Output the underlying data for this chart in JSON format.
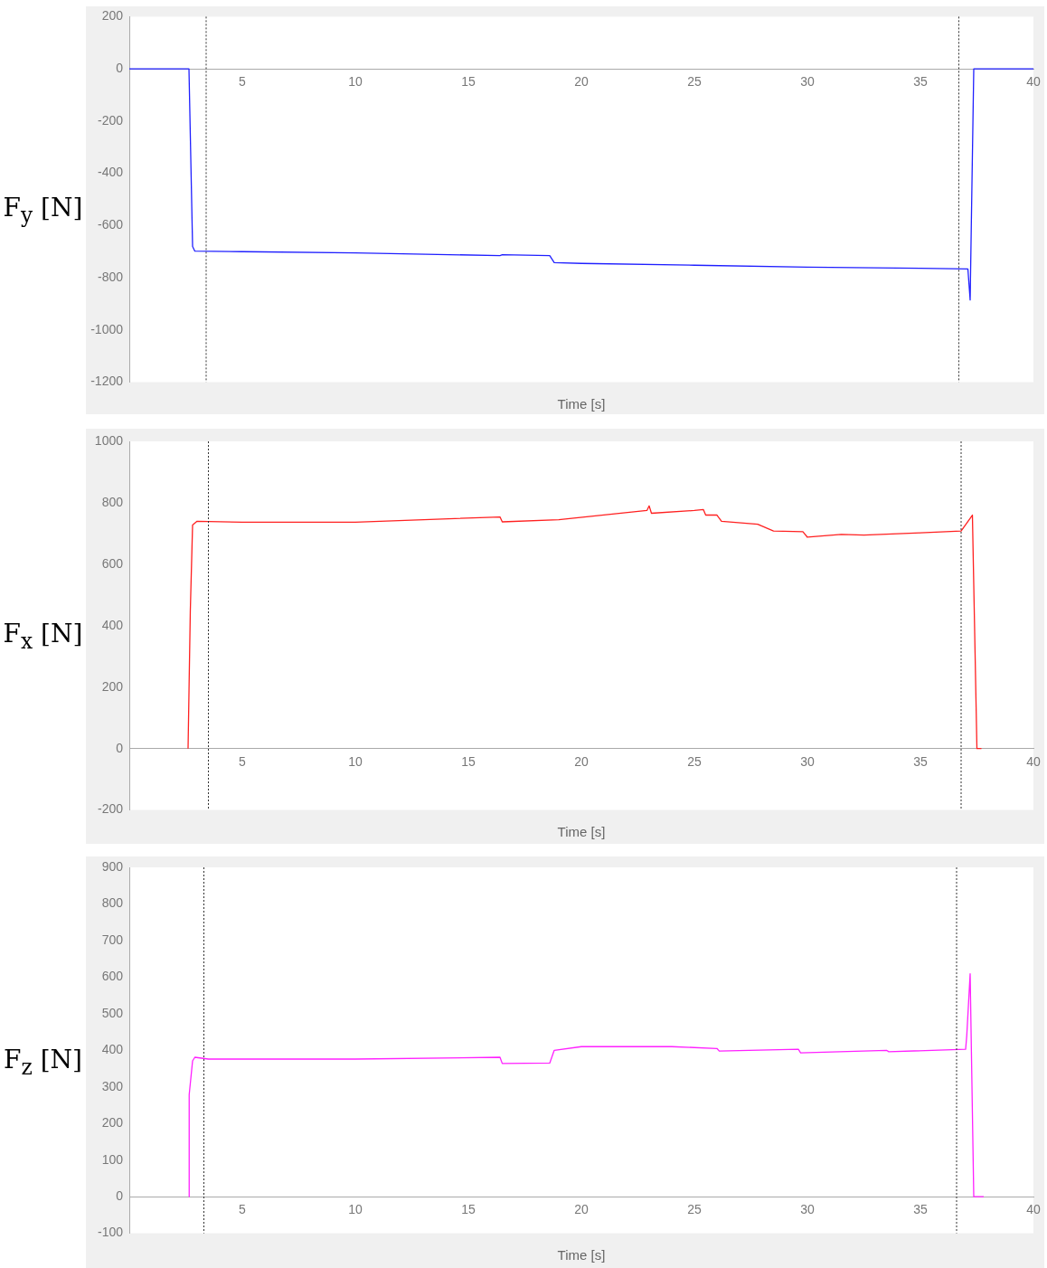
{
  "chart_data": [
    {
      "type": "line",
      "ylabel": "F$_{y}$ [N]",
      "xlabel": "Time [s]",
      "color": "#1f1fff",
      "xlim": [
        0,
        40
      ],
      "xticks": [
        5,
        10,
        15,
        20,
        25,
        30,
        35,
        40
      ],
      "ylim": [
        -1200,
        200
      ],
      "yticks": [
        200,
        0,
        -200,
        -400,
        -600,
        -800,
        -1000,
        -1200
      ],
      "x": [
        0,
        2.64,
        2.8,
        2.9,
        5,
        10,
        16.4,
        16.5,
        18.6,
        18.8,
        20,
        25,
        30,
        33,
        35,
        37.1,
        37.2,
        37.36,
        38,
        40
      ],
      "values": [
        0,
        0,
        -680,
        -698,
        -700,
        -705,
        -715,
        -712,
        -715,
        -742,
        -745,
        -752,
        -759,
        -762,
        -764,
        -766,
        -885,
        0,
        0,
        0
      ],
      "ref_lines": [
        {
          "axis": "x",
          "value": 3.4,
          "line_style": "dotted",
          "color": "#333333"
        },
        {
          "axis": "x",
          "value": 36.7,
          "line_style": "dotted",
          "color": "#333333"
        }
      ]
    },
    {
      "type": "line",
      "ylabel": "F$_{x}$ [N]",
      "xlabel": "Time [s]",
      "color": "#ff2020",
      "xlim": [
        0,
        40
      ],
      "xticks": [
        5,
        10,
        15,
        20,
        25,
        30,
        35,
        40
      ],
      "ylim": [
        -200,
        1000
      ],
      "yticks": [
        1000,
        800,
        600,
        400,
        200,
        0,
        -200
      ],
      "x": [
        2.6,
        2.7,
        2.8,
        3.0,
        5,
        10,
        16.4,
        16.5,
        19,
        22.9,
        23.0,
        23.1,
        25,
        25.4,
        25.5,
        26.0,
        26.2,
        27.8,
        28.5,
        29.8,
        30.0,
        31.5,
        32.5,
        35,
        36.8,
        37.3,
        37.5,
        37.7
      ],
      "values": [
        0,
        450,
        728,
        740,
        737,
        737,
        754,
        738,
        745,
        775,
        790,
        766,
        775,
        778,
        760,
        760,
        740,
        730,
        708,
        706,
        688,
        697,
        695,
        702,
        708,
        760,
        0,
        0
      ],
      "ref_lines": [
        {
          "axis": "x",
          "value": 3.5,
          "line_style": "dotted",
          "color": "#333333"
        },
        {
          "axis": "x",
          "value": 36.8,
          "line_style": "dotted",
          "color": "#333333"
        }
      ]
    },
    {
      "type": "line",
      "ylabel": "F$_{z}$ [N]",
      "xlabel": "Time [s]",
      "color": "#ff20ff",
      "xlim": [
        0,
        40
      ],
      "xticks": [
        5,
        10,
        15,
        20,
        25,
        30,
        35,
        40
      ],
      "ylim": [
        -100,
        900
      ],
      "yticks": [
        900,
        800,
        700,
        600,
        500,
        400,
        300,
        200,
        100,
        0,
        -100
      ],
      "x": [
        2.64,
        2.65,
        2.8,
        2.9,
        3.5,
        10,
        16.4,
        16.5,
        18.6,
        18.8,
        20,
        24,
        26,
        26.1,
        29.6,
        29.7,
        33.5,
        33.6,
        37.0,
        37.05,
        37.2,
        37.36,
        37.8
      ],
      "values": [
        0,
        279,
        371,
        381,
        376,
        376,
        381,
        364,
        365,
        400,
        410,
        410,
        405,
        398,
        403,
        393,
        400,
        396,
        403,
        440,
        609,
        0,
        0
      ],
      "ref_lines": [
        {
          "axis": "x",
          "value": 3.3,
          "line_style": "dotted",
          "color": "#333333"
        },
        {
          "axis": "x",
          "value": 36.6,
          "line_style": "dotted",
          "color": "#333333"
        }
      ]
    }
  ]
}
